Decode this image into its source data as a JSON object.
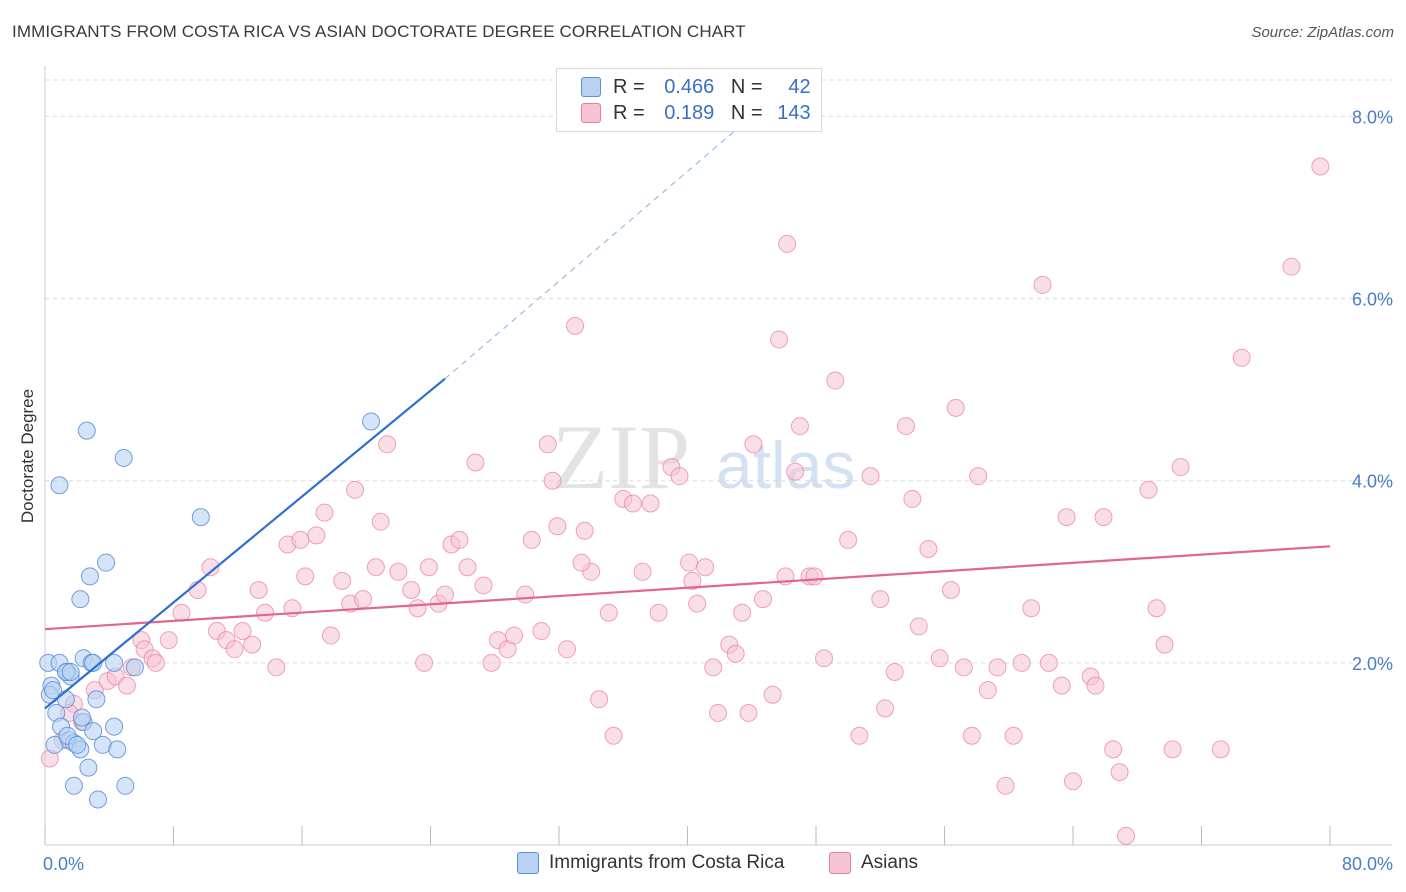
{
  "header": {
    "title": "IMMIGRANTS FROM COSTA RICA VS ASIAN DOCTORATE DEGREE CORRELATION CHART",
    "source": "Source: ZipAtlas.com"
  },
  "legend": {
    "rows": [
      {
        "r_label": "R =",
        "r_value": "0.466",
        "n_label": "N =",
        "n_value": "42"
      },
      {
        "r_label": "R =",
        "r_value": "0.189",
        "n_label": "N =",
        "n_value": "143"
      }
    ]
  },
  "bottom_legend": {
    "series1": "Immigrants from Costa Rica",
    "series2": "Asians"
  },
  "watermark": {
    "zip": "ZIP",
    "atlas": "atlas"
  },
  "colors": {
    "blue": "#5a8fd6",
    "blue_fill": "#b9d2f3",
    "blue_line": "#2f6fd0",
    "pink": "#e87fa0",
    "pink_fill": "#f6c3d3",
    "pink_line": "#e0668f",
    "axis_text": "#4a7cc9",
    "grid": "#dcdcdc"
  },
  "chart_data": {
    "type": "scatter",
    "title": "IMMIGRANTS FROM COSTA RICA VS ASIAN DOCTORATE DEGREE CORRELATION CHART",
    "ylabel": "Doctorate Degree",
    "xlabel": "",
    "xlim": [
      0,
      80
    ],
    "ylim": [
      0,
      8.4
    ],
    "x_tick_labels": [
      "0.0%",
      "80.0%"
    ],
    "y_ticks": [
      2,
      4,
      6,
      8
    ],
    "y_tick_labels": [
      "2.0%",
      "4.0%",
      "6.0%",
      "8.0%"
    ],
    "grid": true,
    "legend_position": "top-center",
    "series": [
      {
        "name": "Immigrants from Costa Rica",
        "color": "#5a8fd6",
        "r": 0.466,
        "n": 42,
        "trend": {
          "x": [
            0,
            24.9
          ],
          "y": [
            1.5,
            5.12
          ]
        },
        "trend_extension": {
          "x": [
            24.9,
            44
          ],
          "y": [
            5.12,
            8.0
          ]
        },
        "points": [
          [
            0.2,
            2.0
          ],
          [
            0.4,
            1.75
          ],
          [
            0.3,
            1.65
          ],
          [
            0.5,
            1.7
          ],
          [
            0.9,
            2.0
          ],
          [
            1.4,
            1.9
          ],
          [
            1.6,
            1.85
          ],
          [
            1.3,
            1.9
          ],
          [
            2.4,
            2.05
          ],
          [
            2.9,
            2.0
          ],
          [
            3.0,
            2.0
          ],
          [
            0.7,
            1.45
          ],
          [
            1.3,
            1.6
          ],
          [
            1.0,
            1.3
          ],
          [
            2.4,
            1.35
          ],
          [
            3.2,
            1.6
          ],
          [
            4.3,
            2.0
          ],
          [
            5.6,
            1.95
          ],
          [
            0.6,
            1.1
          ],
          [
            1.5,
            1.15
          ],
          [
            1.8,
            1.12
          ],
          [
            2.2,
            1.05
          ],
          [
            3.0,
            1.25
          ],
          [
            3.6,
            1.1
          ],
          [
            4.3,
            1.3
          ],
          [
            1.8,
            0.65
          ],
          [
            2.7,
            0.85
          ],
          [
            3.3,
            0.5
          ],
          [
            5.0,
            0.65
          ],
          [
            0.9,
            3.95
          ],
          [
            2.6,
            4.55
          ],
          [
            4.9,
            4.25
          ],
          [
            9.7,
            3.6
          ],
          [
            3.8,
            3.1
          ],
          [
            2.8,
            2.95
          ],
          [
            2.2,
            2.7
          ],
          [
            20.3,
            4.65
          ],
          [
            2.3,
            1.4
          ],
          [
            1.4,
            1.2
          ],
          [
            4.5,
            1.05
          ],
          [
            1.6,
            1.9
          ],
          [
            2.0,
            1.1
          ]
        ]
      },
      {
        "name": "Asians",
        "color": "#e87fa0",
        "r": 0.189,
        "n": 143,
        "trend": {
          "x": [
            0,
            80
          ],
          "y": [
            2.37,
            3.28
          ]
        },
        "points": [
          [
            0.3,
            0.95
          ],
          [
            1.1,
            1.15
          ],
          [
            1.8,
            1.55
          ],
          [
            1.5,
            1.45
          ],
          [
            2.3,
            1.35
          ],
          [
            3.1,
            1.7
          ],
          [
            3.9,
            1.8
          ],
          [
            4.4,
            1.85
          ],
          [
            5.1,
            1.75
          ],
          [
            5.4,
            1.95
          ],
          [
            6.0,
            2.25
          ],
          [
            6.2,
            2.15
          ],
          [
            6.7,
            2.05
          ],
          [
            6.9,
            2.0
          ],
          [
            7.7,
            2.25
          ],
          [
            8.5,
            2.55
          ],
          [
            9.5,
            2.8
          ],
          [
            10.3,
            3.05
          ],
          [
            10.7,
            2.35
          ],
          [
            11.3,
            2.25
          ],
          [
            11.8,
            2.15
          ],
          [
            12.3,
            2.35
          ],
          [
            12.9,
            2.2
          ],
          [
            13.3,
            2.8
          ],
          [
            13.7,
            2.55
          ],
          [
            14.4,
            1.95
          ],
          [
            15.1,
            3.3
          ],
          [
            15.4,
            2.6
          ],
          [
            15.9,
            3.35
          ],
          [
            16.2,
            2.95
          ],
          [
            16.9,
            3.4
          ],
          [
            17.4,
            3.65
          ],
          [
            17.8,
            2.3
          ],
          [
            18.5,
            2.9
          ],
          [
            19.0,
            2.65
          ],
          [
            19.3,
            3.9
          ],
          [
            19.8,
            2.7
          ],
          [
            20.6,
            3.05
          ],
          [
            20.9,
            3.55
          ],
          [
            21.3,
            4.4
          ],
          [
            22.0,
            3.0
          ],
          [
            22.8,
            2.8
          ],
          [
            23.2,
            2.6
          ],
          [
            23.6,
            2.0
          ],
          [
            23.9,
            3.05
          ],
          [
            24.5,
            2.65
          ],
          [
            24.9,
            2.75
          ],
          [
            25.3,
            3.3
          ],
          [
            25.8,
            3.35
          ],
          [
            26.3,
            3.05
          ],
          [
            26.8,
            4.2
          ],
          [
            27.3,
            2.85
          ],
          [
            27.8,
            2.0
          ],
          [
            28.2,
            2.25
          ],
          [
            28.8,
            2.15
          ],
          [
            29.2,
            2.3
          ],
          [
            29.9,
            2.75
          ],
          [
            30.3,
            3.35
          ],
          [
            30.9,
            2.35
          ],
          [
            31.3,
            4.4
          ],
          [
            31.6,
            4.0
          ],
          [
            31.9,
            3.5
          ],
          [
            32.5,
            2.15
          ],
          [
            33.0,
            5.7
          ],
          [
            33.6,
            3.45
          ],
          [
            34.0,
            3.0
          ],
          [
            34.5,
            1.6
          ],
          [
            35.1,
            2.55
          ],
          [
            35.4,
            1.2
          ],
          [
            36.0,
            3.8
          ],
          [
            36.6,
            3.75
          ],
          [
            37.2,
            3.0
          ],
          [
            37.7,
            3.75
          ],
          [
            38.2,
            2.55
          ],
          [
            39.0,
            4.15
          ],
          [
            39.5,
            4.05
          ],
          [
            40.1,
            3.1
          ],
          [
            40.3,
            2.9
          ],
          [
            40.6,
            2.65
          ],
          [
            41.1,
            3.05
          ],
          [
            41.6,
            1.95
          ],
          [
            41.9,
            1.45
          ],
          [
            42.6,
            2.2
          ],
          [
            43.0,
            2.1
          ],
          [
            43.4,
            2.55
          ],
          [
            44.1,
            4.4
          ],
          [
            44.7,
            2.7
          ],
          [
            45.3,
            1.65
          ],
          [
            45.7,
            5.55
          ],
          [
            46.1,
            2.95
          ],
          [
            46.7,
            4.1
          ],
          [
            47.0,
            4.6
          ],
          [
            47.6,
            2.95
          ],
          [
            47.9,
            2.95
          ],
          [
            48.5,
            2.05
          ],
          [
            49.2,
            5.1
          ],
          [
            50.0,
            3.35
          ],
          [
            50.7,
            1.2
          ],
          [
            51.4,
            4.05
          ],
          [
            52.0,
            2.7
          ],
          [
            52.3,
            1.5
          ],
          [
            52.9,
            1.9
          ],
          [
            53.6,
            4.6
          ],
          [
            54.0,
            3.8
          ],
          [
            54.4,
            2.4
          ],
          [
            55.0,
            3.25
          ],
          [
            55.7,
            2.05
          ],
          [
            56.4,
            2.8
          ],
          [
            56.7,
            4.8
          ],
          [
            57.2,
            1.95
          ],
          [
            57.7,
            1.2
          ],
          [
            58.1,
            4.05
          ],
          [
            58.7,
            1.7
          ],
          [
            59.3,
            1.95
          ],
          [
            59.8,
            0.65
          ],
          [
            60.3,
            1.2
          ],
          [
            60.8,
            2.0
          ],
          [
            61.4,
            2.6
          ],
          [
            62.1,
            6.15
          ],
          [
            62.5,
            2.0
          ],
          [
            63.3,
            1.75
          ],
          [
            63.6,
            3.6
          ],
          [
            64.0,
            0.7
          ],
          [
            65.1,
            1.85
          ],
          [
            65.4,
            1.75
          ],
          [
            65.9,
            3.6
          ],
          [
            66.5,
            1.05
          ],
          [
            66.9,
            0.8
          ],
          [
            67.3,
            0.1
          ],
          [
            68.7,
            3.9
          ],
          [
            69.2,
            2.6
          ],
          [
            69.7,
            2.2
          ],
          [
            70.2,
            1.05
          ],
          [
            70.7,
            4.15
          ],
          [
            73.2,
            1.05
          ],
          [
            74.5,
            5.35
          ],
          [
            77.6,
            6.35
          ],
          [
            79.4,
            7.45
          ],
          [
            46.2,
            6.6
          ],
          [
            43.8,
            1.45
          ],
          [
            33.4,
            3.1
          ]
        ]
      }
    ]
  }
}
